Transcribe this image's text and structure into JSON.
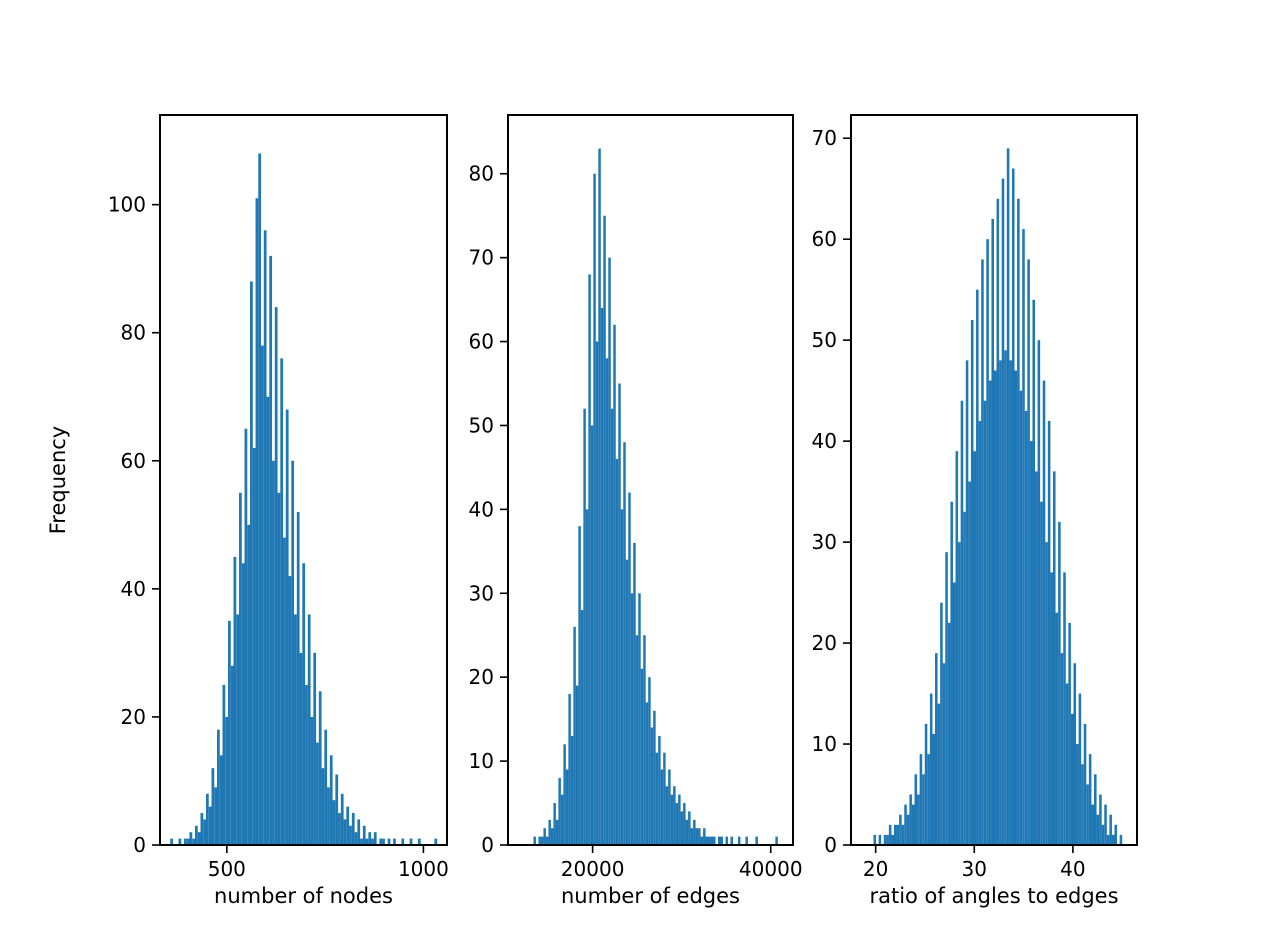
{
  "style": {
    "bar_color": "#1f77b4",
    "axis_color": "#000000",
    "tick_font_size": 20,
    "label_font_size": 21,
    "background": "#ffffff"
  },
  "chart_data": [
    {
      "type": "histogram",
      "title": "",
      "xlabel": "number of nodes",
      "ylabel": "Frequency",
      "xlim": [
        330,
        1060
      ],
      "ylim": [
        0,
        114
      ],
      "x_ticks": [
        500,
        1000
      ],
      "y_ticks": [
        0,
        20,
        40,
        60,
        80,
        100
      ],
      "grid": false,
      "bin_start": 335,
      "bin_width": 7,
      "counts": [
        0,
        0,
        0,
        1,
        0,
        0,
        1,
        0,
        1,
        1,
        2,
        1,
        3,
        2,
        5,
        4,
        8,
        6,
        12,
        9,
        18,
        14,
        25,
        20,
        35,
        28,
        45,
        36,
        55,
        44,
        65,
        50,
        88,
        62,
        101,
        108,
        78,
        96,
        70,
        92,
        60,
        84,
        55,
        76,
        48,
        68,
        42,
        60,
        36,
        52,
        30,
        44,
        25,
        36,
        20,
        30,
        16,
        24,
        12,
        18,
        9,
        14,
        7,
        11,
        5,
        8,
        4,
        6,
        3,
        5,
        2,
        4,
        1,
        3,
        1,
        2,
        1,
        2,
        0,
        1,
        1,
        0,
        1,
        0,
        1,
        0,
        0,
        1,
        0,
        0,
        1,
        0,
        0,
        1,
        0,
        0,
        0,
        0,
        0,
        1
      ]
    },
    {
      "type": "histogram",
      "title": "",
      "xlabel": "number of edges",
      "ylabel": "",
      "xlim": [
        10500,
        42500
      ],
      "ylim": [
        0,
        87
      ],
      "x_ticks": [
        20000,
        40000
      ],
      "y_ticks": [
        0,
        10,
        20,
        30,
        40,
        50,
        60,
        70,
        80
      ],
      "grid": false,
      "bin_start": 12800,
      "bin_width": 280,
      "counts": [
        0,
        0,
        1,
        0,
        1,
        1,
        2,
        1,
        3,
        2,
        5,
        3,
        8,
        6,
        12,
        9,
        18,
        13,
        26,
        19,
        38,
        28,
        52,
        40,
        68,
        50,
        80,
        60,
        83,
        64,
        75,
        58,
        70,
        52,
        62,
        46,
        55,
        40,
        48,
        34,
        42,
        30,
        36,
        25,
        30,
        21,
        25,
        17,
        20,
        14,
        16,
        11,
        13,
        9,
        11,
        7,
        9,
        6,
        7,
        5,
        6,
        4,
        5,
        3,
        4,
        2,
        3,
        2,
        2,
        1,
        2,
        1,
        1,
        1,
        1,
        0,
        1,
        1,
        0,
        1,
        0,
        1,
        0,
        0,
        1,
        0,
        0,
        1,
        0,
        0,
        0,
        1,
        0,
        0,
        0,
        0,
        0,
        0,
        0,
        1
      ]
    },
    {
      "type": "histogram",
      "title": "",
      "xlabel": "ratio of angles to edges",
      "ylabel": "",
      "xlim": [
        17.5,
        46.5
      ],
      "ylim": [
        0,
        72.3
      ],
      "x_ticks": [
        20,
        30,
        40
      ],
      "y_ticks": [
        0,
        10,
        20,
        30,
        40,
        50,
        60,
        70
      ],
      "grid": false,
      "bin_start": 19,
      "bin_width": 0.26,
      "counts": [
        0,
        0,
        0,
        1,
        0,
        1,
        0,
        1,
        1,
        2,
        1,
        2,
        2,
        3,
        2,
        4,
        3,
        5,
        4,
        7,
        5,
        9,
        7,
        12,
        9,
        15,
        11,
        19,
        14,
        24,
        18,
        29,
        22,
        34,
        26,
        39,
        30,
        44,
        33,
        48,
        36,
        52,
        39,
        55,
        42,
        58,
        44,
        60,
        46,
        62,
        47,
        64,
        48,
        66,
        49,
        69,
        48,
        67,
        47,
        64,
        45,
        61,
        43,
        58,
        40,
        54,
        37,
        50,
        34,
        46,
        30,
        42,
        27,
        37,
        23,
        32,
        19,
        27,
        16,
        22,
        13,
        18,
        10,
        15,
        8,
        12,
        6,
        9,
        4,
        7,
        3,
        5,
        2,
        4,
        1,
        3,
        1,
        2,
        0,
        1
      ]
    }
  ]
}
